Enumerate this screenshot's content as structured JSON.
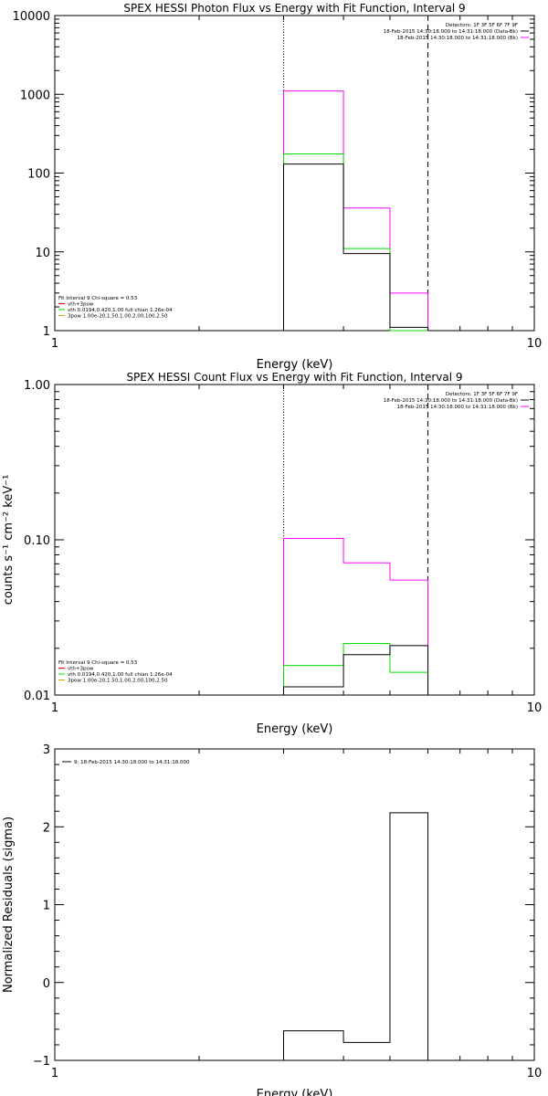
{
  "chart_data": [
    {
      "type": "line",
      "title": "SPEX HESSI Photon Flux vs Energy with Fit Function, Interval 9",
      "xlabel": "Energy (keV)",
      "ylabel": "",
      "xscale": "log",
      "yscale": "log",
      "xlim": [
        1,
        10
      ],
      "ylim": [
        1,
        10000
      ],
      "x_ticks": [
        "1",
        "10"
      ],
      "y_ticks": [
        "1",
        "10",
        "100",
        "1000",
        "10000"
      ],
      "vlines": [
        {
          "x": 3.0,
          "style": "dotted"
        },
        {
          "x": 6.0,
          "style": "dashed"
        }
      ],
      "info_lines": [
        "Detectors: 1F 3F 5F 6F 7F 9F",
        "18-Feb-2015 14:30:18.000 to 14:31:18.000 (Data-Bk)",
        "18-Feb-2015 14:30:18.000 to 14:31:18.000 (Bk)"
      ],
      "legend": [
        "Fit Interval 9   Chi-square = 0.53",
        "vth+3pow",
        "vth 0.0194,0.420,1.00  full chian 1.26e-04",
        "3pow 1.00e-20,1.50,1.00,2.00,100,2.50"
      ],
      "series": [
        {
          "color": "#ff00ff",
          "bin_edges": [
            3.0,
            4.0,
            5.0,
            6.0
          ],
          "values": [
            1100,
            36,
            3
          ]
        },
        {
          "color": "#00e000",
          "bin_edges": [
            3.0,
            4.0,
            5.0,
            6.0
          ],
          "values": [
            175,
            11,
            1
          ]
        },
        {
          "color": "#000000",
          "bin_edges": [
            3.0,
            4.0,
            5.0,
            6.0
          ],
          "values": [
            130,
            9.5,
            1.1
          ]
        }
      ]
    },
    {
      "type": "line",
      "title": "SPEX HESSI Count Flux vs Energy with Fit Function, Interval 9",
      "xlabel": "Energy (keV)",
      "ylabel": "counts s⁻¹ cm⁻² keV⁻¹",
      "xscale": "log",
      "yscale": "log",
      "xlim": [
        1,
        10
      ],
      "ylim": [
        0.01,
        1.0
      ],
      "x_ticks": [
        "1",
        "10"
      ],
      "y_ticks": [
        "0.01",
        "0.10",
        "1.00"
      ],
      "vlines": [
        {
          "x": 3.0,
          "style": "dotted"
        },
        {
          "x": 6.0,
          "style": "dashed"
        }
      ],
      "info_lines": [
        "Detectors: 1F 3F 5F 6F 7F 9F",
        "18-Feb-2015 14:30:18.000 to 14:31:18.000 (Data-Bk)",
        "18-Feb-2015 14:30:18.000 to 14:31:18.000 (Bk)"
      ],
      "legend": [
        "Fit Interval 9   Chi-square = 0.53",
        "vth+3pow",
        "vth 0.0194,0.420,1.00  full chian 1.26e-04",
        "3pow 1.00e-20,1.50,1.00,2.00,100,2.50"
      ],
      "series": [
        {
          "color": "#ff00ff",
          "bin_edges": [
            3.0,
            4.0,
            5.0,
            6.0
          ],
          "values": [
            0.102,
            0.071,
            0.055
          ]
        },
        {
          "color": "#00e000",
          "bin_edges": [
            3.0,
            4.0,
            5.0,
            6.0
          ],
          "values": [
            0.0155,
            0.0215,
            0.014
          ]
        },
        {
          "color": "#000000",
          "bin_edges": [
            3.0,
            4.0,
            5.0,
            6.0
          ],
          "values": [
            0.0113,
            0.0182,
            0.0208
          ]
        }
      ]
    },
    {
      "type": "line",
      "title": "",
      "xlabel": "Energy (keV)",
      "ylabel": "Normalized Residuals (sigma)",
      "xscale": "log",
      "yscale": "linear",
      "xlim": [
        1,
        10
      ],
      "ylim": [
        -1,
        3
      ],
      "x_ticks": [
        "1",
        "10"
      ],
      "y_ticks": [
        "−1",
        "0",
        "1",
        "2",
        "3"
      ],
      "vlines": [],
      "info_lines": [],
      "legend": [
        "9: 18-Feb-2015 14:30:18.000 to 14:31:18.000"
      ],
      "series": [
        {
          "color": "#000000",
          "bin_edges": [
            3.0,
            4.0,
            5.0,
            6.0
          ],
          "values": [
            -0.62,
            -0.77,
            2.18
          ]
        }
      ]
    }
  ]
}
